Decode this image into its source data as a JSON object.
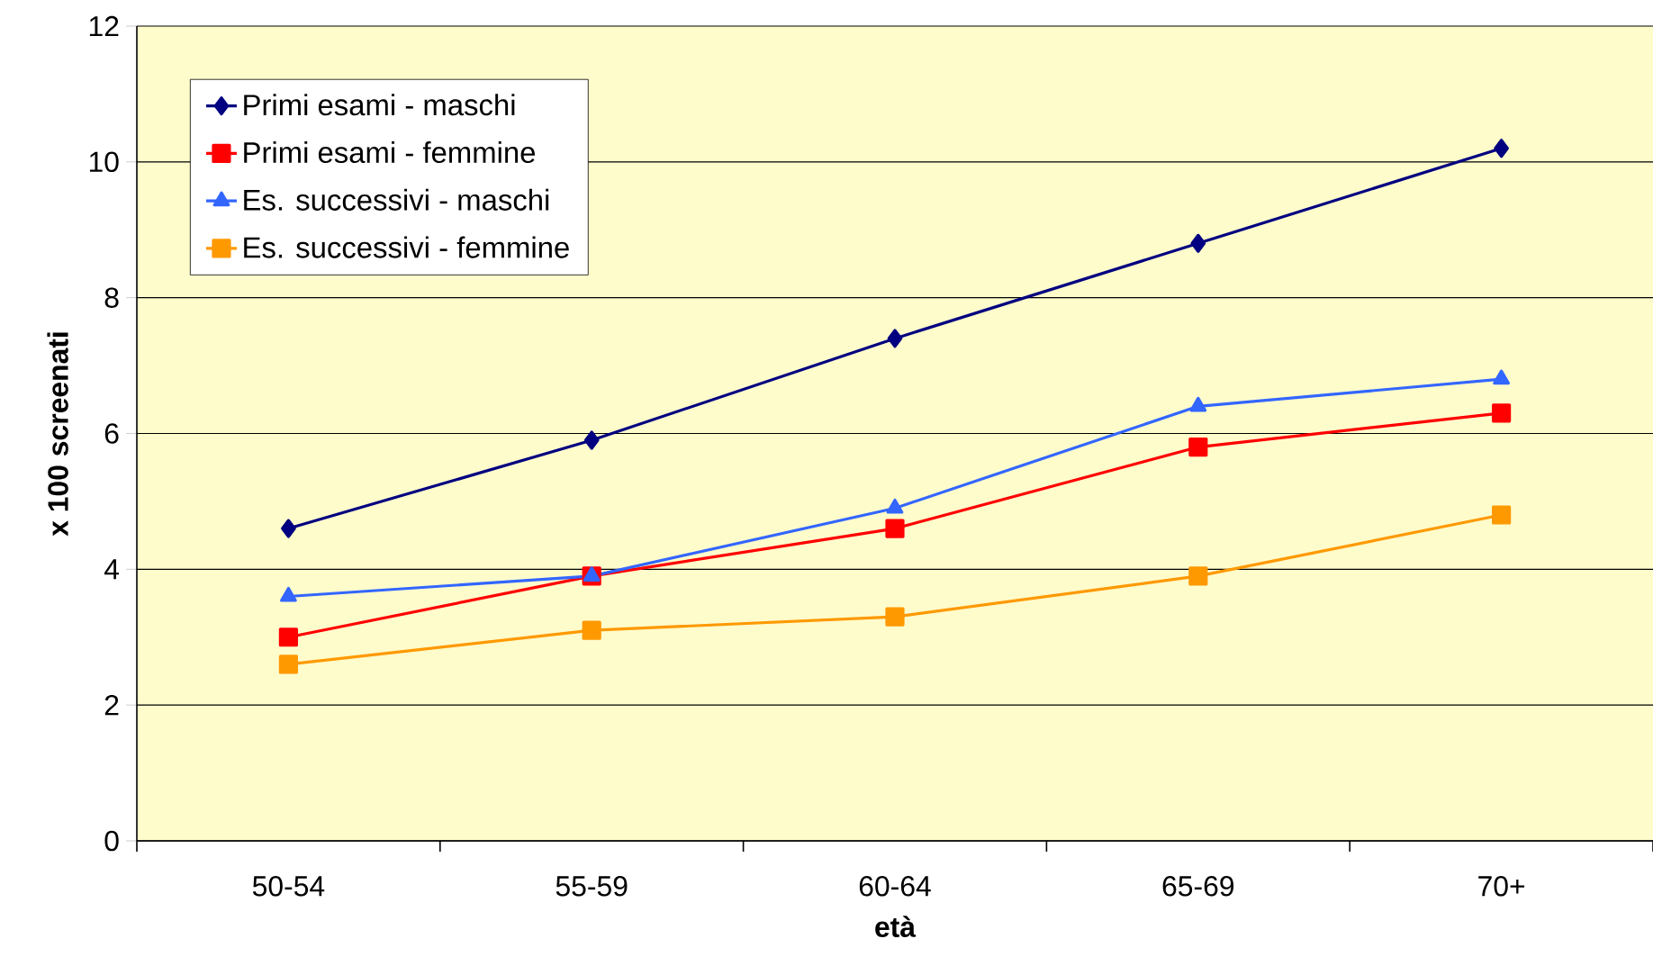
{
  "chart_data": {
    "type": "line",
    "xlabel": "età",
    "ylabel": "x 100 screenati",
    "categories": [
      "50-54",
      "55-59",
      "60-64",
      "65-69",
      "70+"
    ],
    "series": [
      {
        "name": "Primi esami - maschi",
        "color": "#000080",
        "marker": "diamond",
        "values": [
          4.6,
          5.9,
          7.4,
          8.8,
          10.2
        ]
      },
      {
        "name": "Primi esami - femmine",
        "color": "#ff0000",
        "marker": "square",
        "values": [
          3.0,
          3.9,
          4.6,
          5.8,
          6.3
        ]
      },
      {
        "name": "Es. successivi - maschi",
        "color": "#3366ff",
        "marker": "triangle",
        "values": [
          3.6,
          3.9,
          4.9,
          6.4,
          6.8
        ]
      },
      {
        "name": "Es. successivi - femmine",
        "color": "#ff9900",
        "marker": "square",
        "values": [
          2.6,
          3.1,
          3.3,
          3.9,
          4.8
        ]
      }
    ],
    "ylim": [
      0,
      12
    ],
    "yticks": [
      0,
      2,
      4,
      6,
      8,
      10,
      12
    ],
    "grid": "y",
    "legend": "top left",
    "line_style": "solid"
  }
}
